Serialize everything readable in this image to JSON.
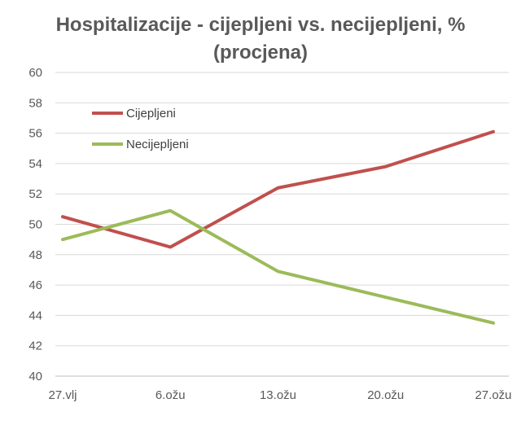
{
  "chart_data": {
    "type": "line",
    "title_line1": "Hospitalizacije - cijepljeni vs. necijepljeni, %",
    "title_line2": "(procjena)",
    "categories": [
      "27.vlj",
      "6.ožu",
      "13.ožu",
      "20.ožu",
      "27.ožu"
    ],
    "ylim": [
      40,
      60
    ],
    "yticks": [
      40,
      42,
      44,
      46,
      48,
      50,
      52,
      54,
      56,
      58,
      60
    ],
    "grid": true,
    "legend_position": "top-left",
    "series": [
      {
        "name": "Cijepljeni",
        "color": "#c0504d",
        "values": [
          50.5,
          48.5,
          52.4,
          53.8,
          56.1
        ]
      },
      {
        "name": "Necijepljeni",
        "color": "#9bbb59",
        "values": [
          49.0,
          50.9,
          46.9,
          45.2,
          43.5
        ]
      }
    ]
  }
}
